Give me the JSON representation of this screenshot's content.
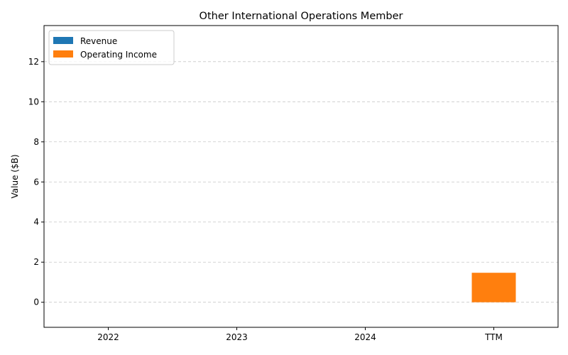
{
  "chart_data": {
    "type": "bar",
    "title": "Other International Operations Member",
    "xlabel": "",
    "ylabel": "Value ($B)",
    "categories": [
      "2022",
      "2023",
      "2024",
      "TTM"
    ],
    "series": [
      {
        "name": "Revenue",
        "color": "#1f77b4",
        "values": [
          0,
          0,
          0,
          0
        ]
      },
      {
        "name": "Operating Income",
        "color": "#ff7f0e",
        "values": [
          0,
          0,
          0,
          1.47
        ]
      }
    ],
    "ylim": [
      -1.25,
      13.8
    ],
    "yticks": [
      0,
      2,
      4,
      6,
      8,
      10,
      12
    ],
    "grid": true,
    "legend_position": "top-left"
  }
}
